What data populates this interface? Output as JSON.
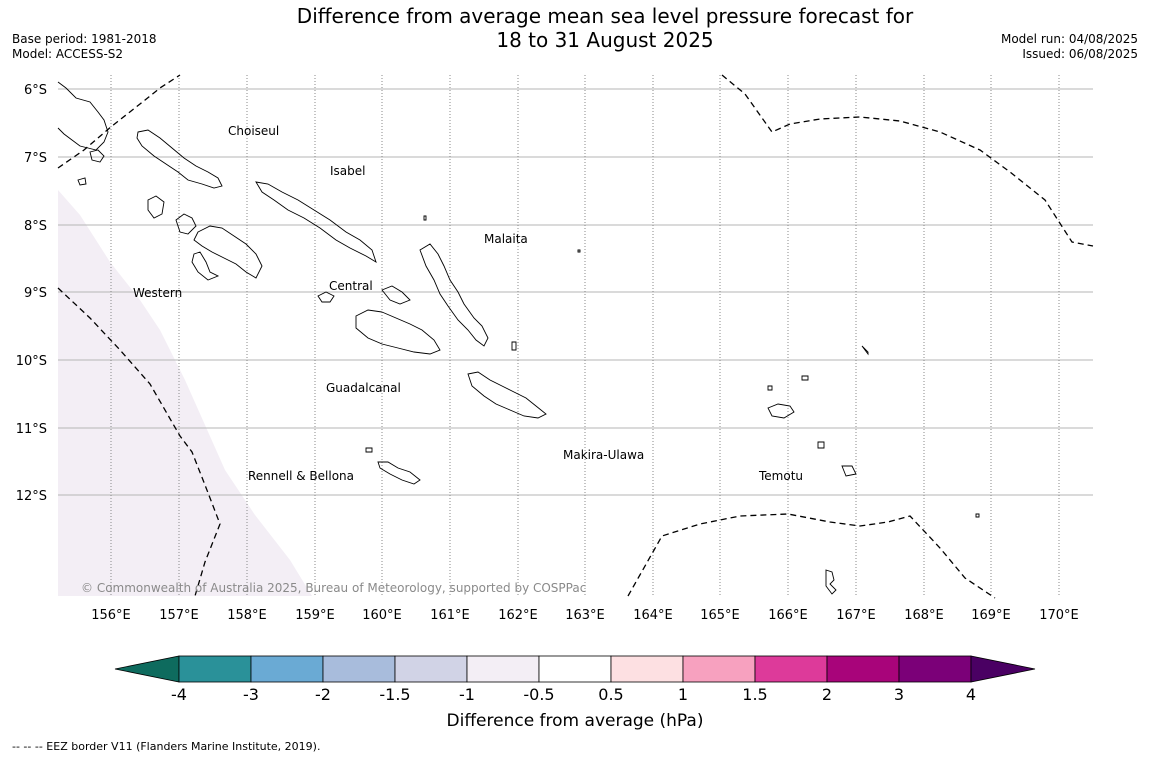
{
  "title": {
    "line1": "Difference from average mean sea level pressure forecast for",
    "line2": "18 to 31 August 2025"
  },
  "meta_left": {
    "base_period": "Base period: 1981-2018",
    "model": "Model: ACCESS-S2"
  },
  "meta_right": {
    "model_run": "Model run: 04/08/2025",
    "issued": "Issued: 06/08/2025"
  },
  "map": {
    "lat_labels": [
      "6°S",
      "7°S",
      "8°S",
      "9°S",
      "10°S",
      "11°S",
      "12°S"
    ],
    "lon_labels": [
      "156°E",
      "157°E",
      "158°E",
      "159°E",
      "160°E",
      "161°E",
      "162°E",
      "163°E",
      "164°E",
      "165°E",
      "166°E",
      "167°E",
      "168°E",
      "169°E",
      "170°E"
    ],
    "provinces": [
      "Choiseul",
      "Isabel",
      "Malaita",
      "Western",
      "Central",
      "Guadalcanal",
      "Makira-Ulawa",
      "Rennell & Bellona",
      "Temotu"
    ],
    "copyright": "© Commonwealth of Australia 2025, Bureau of Meteorology, supported by COSPPac"
  },
  "colorbar": {
    "colors": [
      "#0e6b5e",
      "#2a9199",
      "#6aaad4",
      "#a8bcdc",
      "#d1d3e6",
      "#f3eef5",
      "#ffffff",
      "#fde0e2",
      "#f7a1bf",
      "#dd3a9a",
      "#a8047a",
      "#7b0078",
      "#4a0063"
    ],
    "tick_labels": [
      "-4",
      "-3",
      "-2",
      "-1.5",
      "-1",
      "-0.5",
      "0.5",
      "1",
      "1.5",
      "2",
      "3",
      "4"
    ],
    "label": "Difference from average (hPa)"
  },
  "footer": {
    "eez_note": "--  --  -- EEZ border V11 (Flanders Marine Institute, 2019)."
  }
}
